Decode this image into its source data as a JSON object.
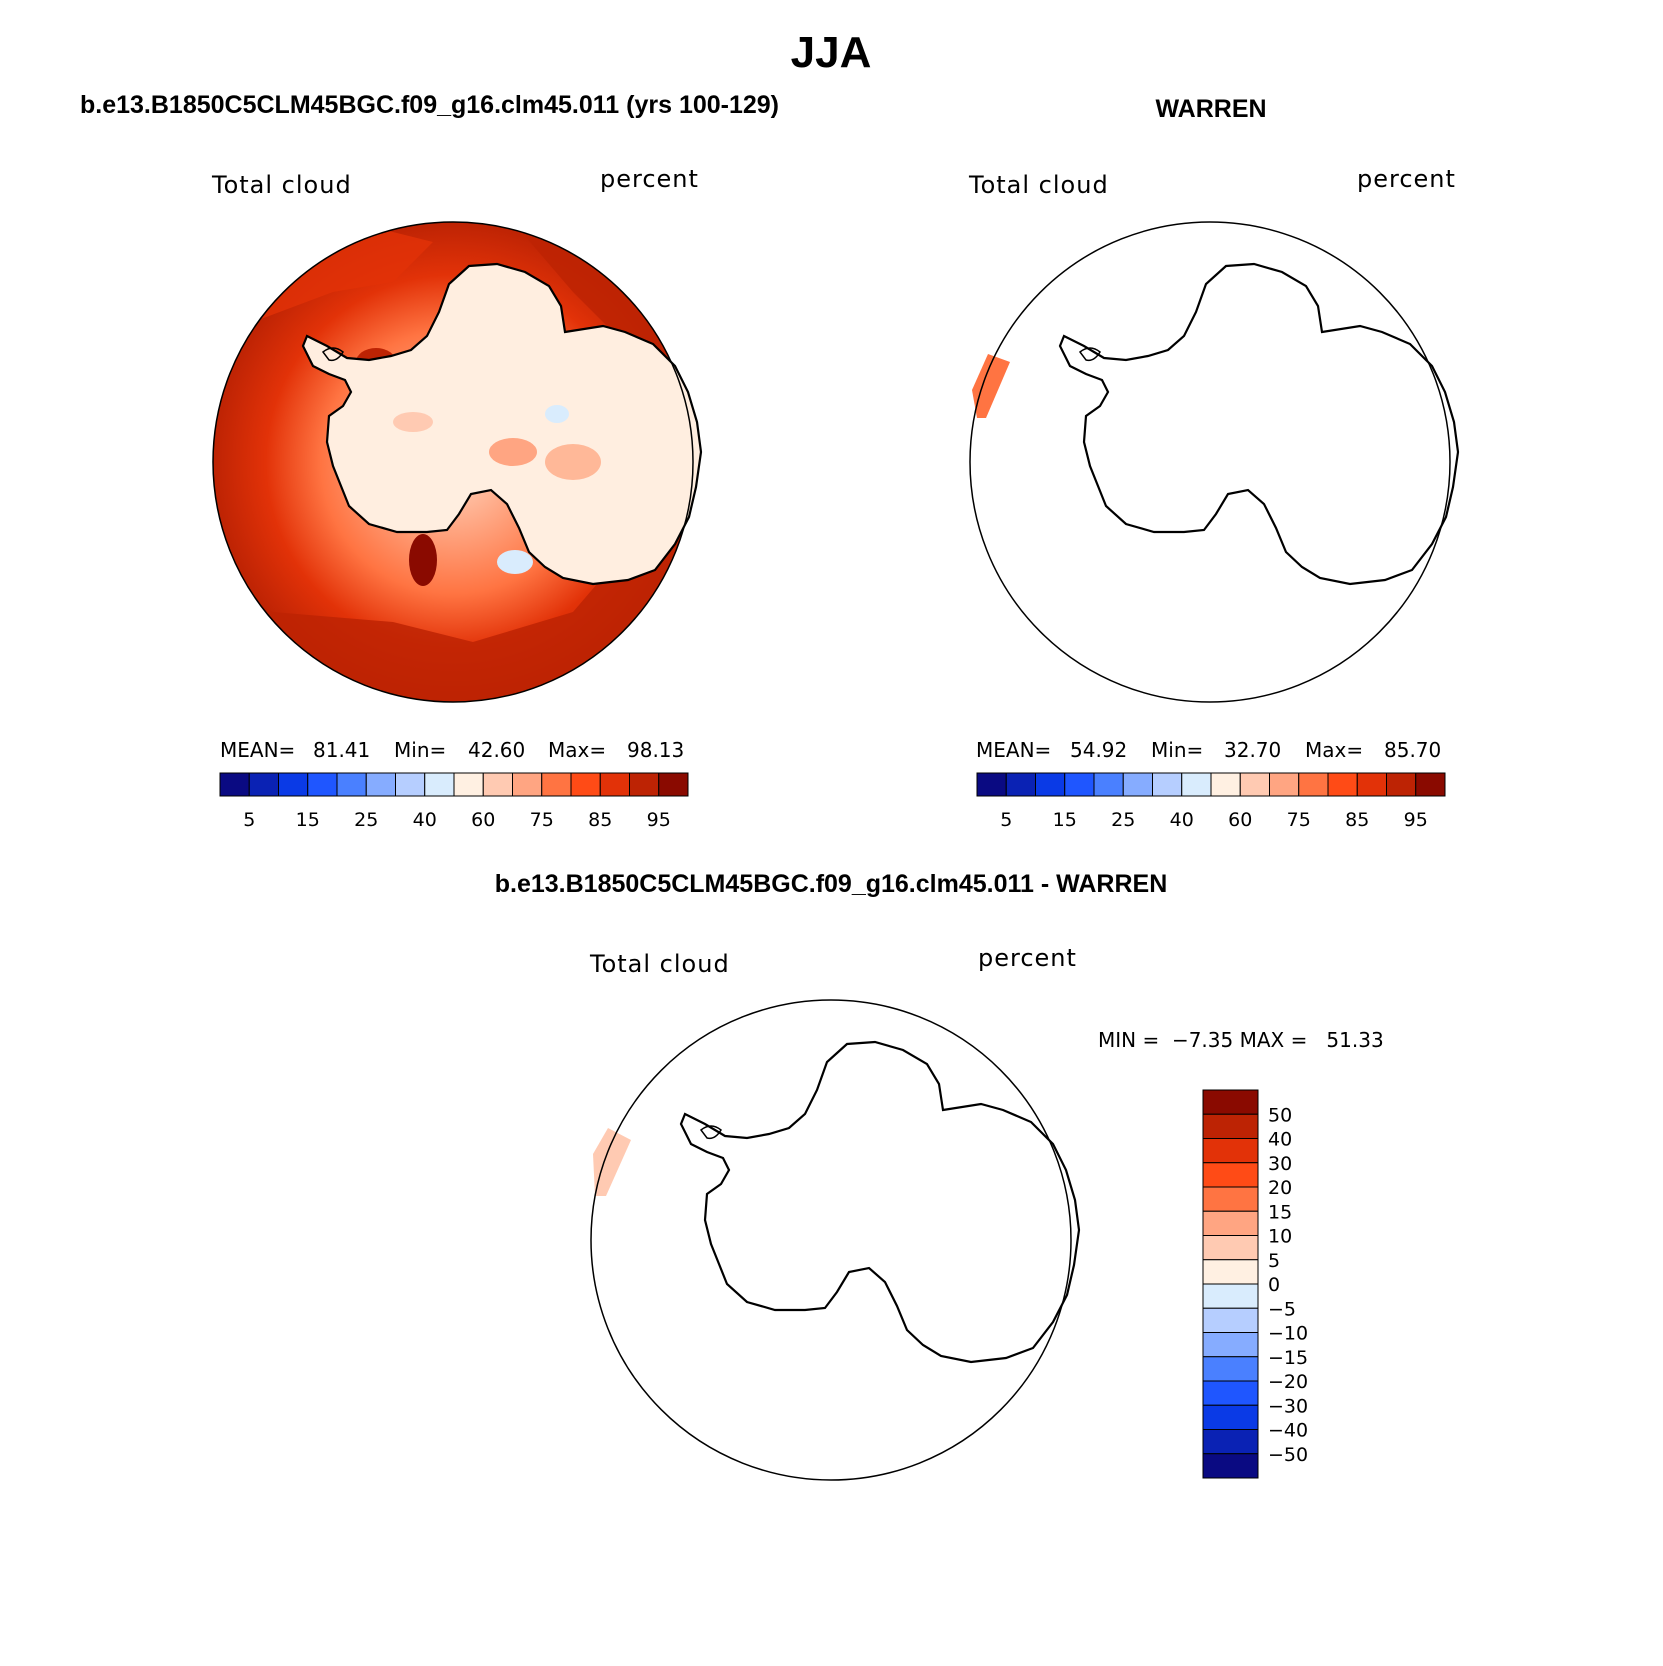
{
  "chart_data": [
    {
      "type": "heatmap",
      "title": "JJA",
      "subtitle": "b.e13.B1850C5CLM45BGC.f09_g16.clm45.011 (yrs 100-129)",
      "label_left": "Total cloud",
      "label_right": "percent",
      "projection": "south polar stereographic",
      "stats": {
        "mean_label": "MEAN=",
        "mean": "81.41",
        "min_label": "Min=",
        "min": "42.60",
        "max_label": "Max=",
        "max": "98.13"
      },
      "colorbar": {
        "orientation": "horizontal",
        "colors": [
          "#0a0a82",
          "#0a22b4",
          "#0a3ae6",
          "#1f56ff",
          "#4a80ff",
          "#86acff",
          "#b6ceff",
          "#d9ecfd",
          "#fff0e2",
          "#ffcab2",
          "#ffa582",
          "#ff7442",
          "#ff4b16",
          "#e23208",
          "#bd2304",
          "#8a0a00"
        ],
        "tick_labels": [
          "5",
          "15",
          "25",
          "40",
          "60",
          "75",
          "85",
          "95"
        ]
      }
    },
    {
      "type": "heatmap",
      "title": "WARREN",
      "label_left": "Total cloud",
      "label_right": "percent",
      "projection": "south polar stereographic",
      "stats": {
        "mean_label": "MEAN=",
        "mean": "54.92",
        "min_label": "Min=",
        "min": "32.70",
        "max_label": "Max=",
        "max": "85.70"
      },
      "colorbar": {
        "orientation": "horizontal",
        "colors": [
          "#0a0a82",
          "#0a22b4",
          "#0a3ae6",
          "#1f56ff",
          "#4a80ff",
          "#86acff",
          "#b6ceff",
          "#d9ecfd",
          "#fff0e2",
          "#ffcab2",
          "#ffa582",
          "#ff7442",
          "#ff4b16",
          "#e23208",
          "#bd2304",
          "#8a0a00"
        ],
        "tick_labels": [
          "5",
          "15",
          "25",
          "40",
          "60",
          "75",
          "85",
          "95"
        ]
      }
    },
    {
      "type": "heatmap",
      "title": "b.e13.B1850C5CLM45BGC.f09_g16.clm45.011 - WARREN",
      "label_left": "Total cloud",
      "label_right": "percent",
      "projection": "south polar stereographic",
      "stats": {
        "text": "MIN =  −7.35 MAX =   51.33"
      },
      "colorbar": {
        "orientation": "vertical",
        "colors_top_to_bottom": [
          "#8a0a00",
          "#bd2304",
          "#e23208",
          "#ff4b16",
          "#ff7442",
          "#ffa582",
          "#ffcab2",
          "#fff0e2",
          "#d9ecfd",
          "#b6ceff",
          "#86acff",
          "#4a80ff",
          "#1f56ff",
          "#0a3ae6",
          "#0a22b4",
          "#0a0a82"
        ],
        "tick_labels_top_to_bottom": [
          "50",
          "40",
          "30",
          "20",
          "15",
          "10",
          "5",
          "0",
          "−5",
          "−10",
          "−15",
          "−20",
          "−30",
          "−40",
          "−50"
        ]
      }
    }
  ]
}
